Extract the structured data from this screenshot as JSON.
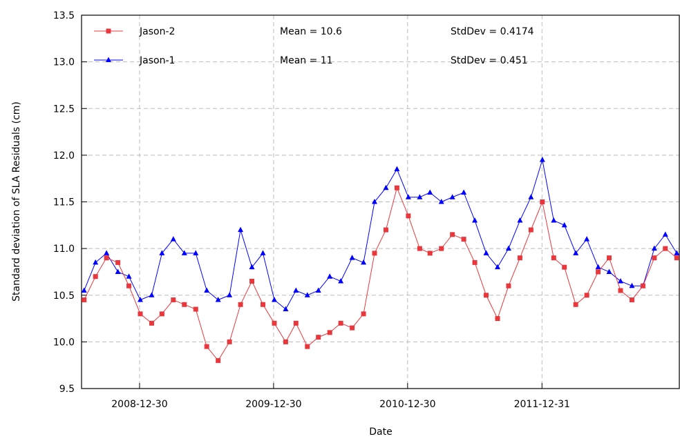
{
  "chart_data": {
    "type": "line",
    "y_label": "Standard deviation of SLA Residuals (cm)",
    "x_label": "Date",
    "x": [
      "2008-08-01",
      "2008-09-01",
      "2008-10-01",
      "2008-11-01",
      "2008-12-01",
      "2009-01-01",
      "2009-02-01",
      "2009-03-01",
      "2009-04-01",
      "2009-05-01",
      "2009-06-01",
      "2009-07-01",
      "2009-08-01",
      "2009-09-01",
      "2009-10-01",
      "2009-11-01",
      "2009-12-01",
      "2010-01-01",
      "2010-02-01",
      "2010-03-01",
      "2010-04-01",
      "2010-05-01",
      "2010-06-01",
      "2010-07-01",
      "2010-08-01",
      "2010-09-01",
      "2010-10-01",
      "2010-11-01",
      "2010-12-01",
      "2011-01-01",
      "2011-02-01",
      "2011-03-01",
      "2011-04-01",
      "2011-05-01",
      "2011-06-01",
      "2011-07-01",
      "2011-08-01",
      "2011-09-01",
      "2011-10-01",
      "2011-11-01",
      "2011-12-01",
      "2012-01-01",
      "2012-02-01",
      "2012-03-01",
      "2012-04-01",
      "2012-05-01",
      "2012-06-01",
      "2012-07-01",
      "2012-08-01",
      "2012-09-01",
      "2012-10-01",
      "2012-11-01",
      "2012-12-01",
      "2013-01-01"
    ],
    "series": [
      {
        "name": "Jason-2",
        "color": "#e8383d",
        "marker": "square",
        "annotations": [
          "Mean = 10.6",
          "StdDev = 0.4174"
        ],
        "values": [
          10.45,
          10.7,
          10.9,
          10.85,
          10.6,
          10.3,
          10.2,
          10.3,
          10.45,
          10.4,
          10.35,
          9.95,
          9.8,
          10.0,
          10.4,
          10.65,
          10.4,
          10.2,
          10.0,
          10.2,
          9.95,
          10.05,
          10.1,
          10.2,
          10.15,
          10.3,
          10.95,
          11.2,
          11.65,
          11.35,
          11.0,
          10.95,
          11.0,
          11.15,
          11.1,
          10.85,
          10.5,
          10.25,
          10.6,
          10.9,
          11.2,
          11.5,
          10.9,
          10.8,
          10.4,
          10.5,
          10.75,
          10.9,
          10.55,
          10.45,
          10.6,
          10.9,
          11.0,
          10.9
        ]
      },
      {
        "name": "Jason-1",
        "color": "#0000ff",
        "marker": "triangle",
        "annotations": [
          "Mean = 11",
          "StdDev = 0.451"
        ],
        "values": [
          10.55,
          10.85,
          10.95,
          10.75,
          10.7,
          10.45,
          10.5,
          10.95,
          11.1,
          10.95,
          10.95,
          10.55,
          10.45,
          10.5,
          11.2,
          10.8,
          10.95,
          10.45,
          10.35,
          10.55,
          10.5,
          10.55,
          10.7,
          10.65,
          10.9,
          10.85,
          11.5,
          11.65,
          11.85,
          11.55,
          11.55,
          11.6,
          11.5,
          11.55,
          11.6,
          11.3,
          10.95,
          10.8,
          11.0,
          11.3,
          11.55,
          11.95,
          11.3,
          11.25,
          10.95,
          11.1,
          10.8,
          10.75,
          10.65,
          10.6,
          10.6,
          11.0,
          11.15,
          10.95
        ]
      }
    ],
    "xlim": [
      "2008-07-25",
      "2013-01-08"
    ],
    "xticks": [
      "2008-12-30",
      "2009-12-30",
      "2010-12-30",
      "2011-12-31"
    ],
    "ylim": [
      9.5,
      13.5
    ],
    "yticks": [
      9.5,
      {
        "value": 10,
        "label": "10.0"
      },
      10.5,
      {
        "value": 11,
        "label": "11.0"
      },
      11.5,
      {
        "value": 12,
        "label": "12.0"
      },
      12.5,
      {
        "value": 13,
        "label": "13.0"
      },
      13.5
    ],
    "grid": true
  }
}
